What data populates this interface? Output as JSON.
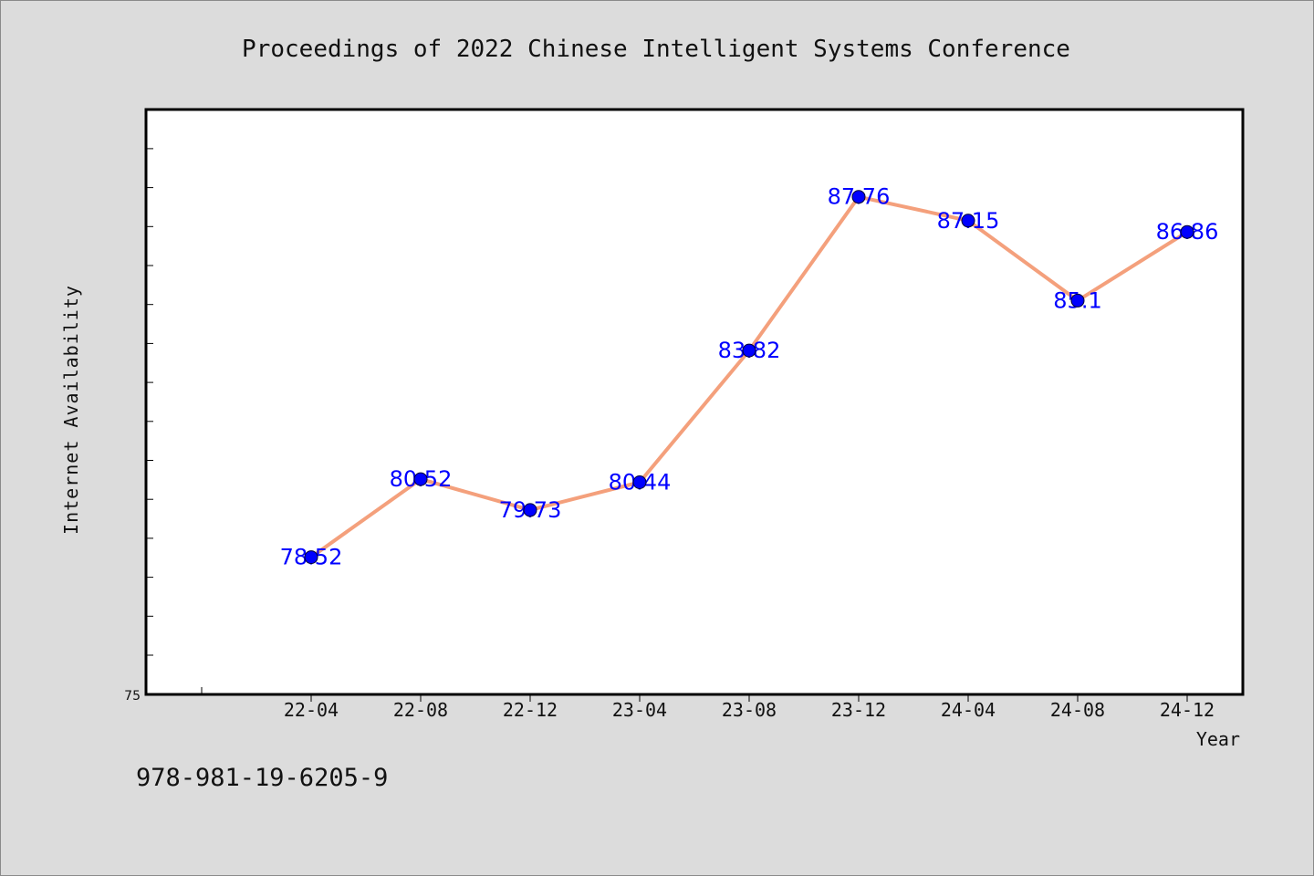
{
  "chart_data": {
    "type": "line",
    "title": "Proceedings of 2022 Chinese Intelligent Systems Conference",
    "xlabel": "Year",
    "ylabel": "Internet Availability",
    "categories": [
      "22-04",
      "22-08",
      "22-12",
      "23-04",
      "23-08",
      "23-12",
      "24-04",
      "24-08",
      "24-12"
    ],
    "series": [
      {
        "values": [
          78.52,
          80.52,
          79.73,
          80.44,
          83.82,
          87.76,
          87.15,
          85.1,
          86.86
        ]
      }
    ],
    "data_labels": [
      "78.52",
      "80.52",
      "79.73",
      "80.44",
      "83.82",
      "87.76",
      "87.15",
      "85.1",
      "86.86"
    ],
    "ylim": [
      75,
      90
    ],
    "ytick_labels": [
      "75"
    ],
    "grid": false,
    "legend": "none",
    "line_color": "#f4a07c",
    "marker_color": "#0000ff",
    "label_color": "#0000ff"
  },
  "footer": {
    "isbn": "978-981-19-6205-9"
  }
}
